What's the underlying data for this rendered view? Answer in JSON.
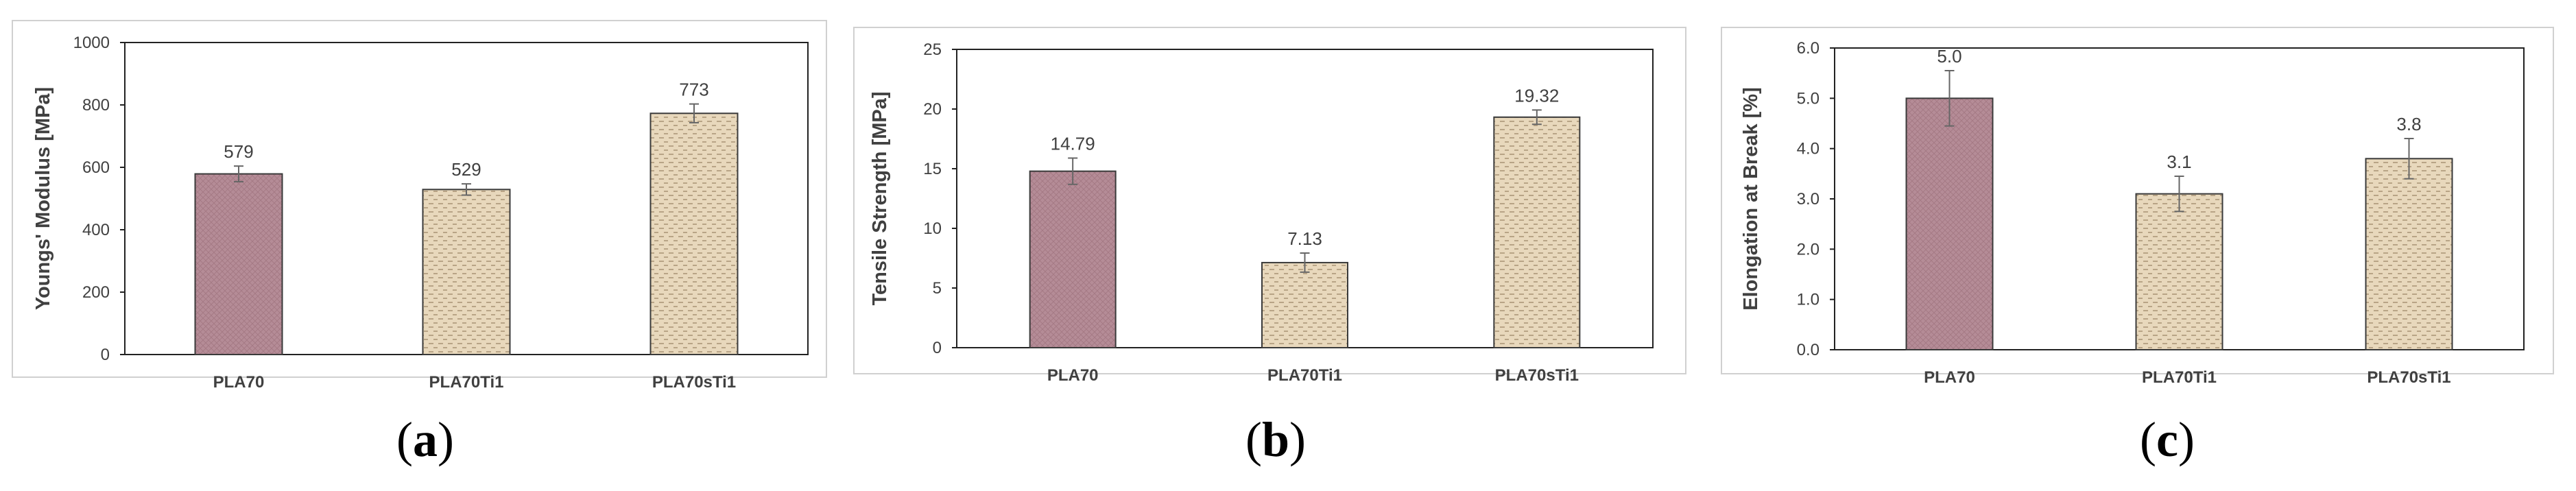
{
  "colors": {
    "pla70_fill": "#b58c97",
    "ti_fill": "#e8d8bc",
    "bar_stroke": "#3a3a3a",
    "frame": "#d0d0d0",
    "error_bar": "#666666",
    "text": "#404040"
  },
  "captions": [
    "a",
    "b",
    "c"
  ],
  "chart_data": [
    {
      "type": "bar",
      "title": "",
      "xlabel": "",
      "ylabel": "Youngs' Modulus [MPa]",
      "categories": [
        "PLA70",
        "PLA70Ti1",
        "PLA70sTi1"
      ],
      "values": [
        579,
        529,
        773
      ],
      "data_labels": [
        "579",
        "529",
        "773"
      ],
      "errors": [
        25,
        18,
        30
      ],
      "ylim": [
        0,
        1000
      ],
      "yticks": [
        "0",
        "200",
        "400",
        "600",
        "800",
        "1000"
      ],
      "grid": false
    },
    {
      "type": "bar",
      "title": "",
      "xlabel": "",
      "ylabel": "Tensile Strength [MPa]",
      "categories": [
        "PLA70",
        "PLA70Ti1",
        "PLA70sTi1"
      ],
      "values": [
        14.79,
        7.13,
        19.32
      ],
      "data_labels": [
        "14.79",
        "7.13",
        "19.32"
      ],
      "errors": [
        1.1,
        0.8,
        0.6
      ],
      "ylim": [
        0,
        25
      ],
      "yticks": [
        "0",
        "5",
        "10",
        "15",
        "20",
        "25"
      ],
      "grid": false
    },
    {
      "type": "bar",
      "title": "",
      "xlabel": "",
      "ylabel": "Elongation at Break [%]",
      "categories": [
        "PLA70",
        "PLA70Ti1",
        "PLA70sTi1"
      ],
      "values": [
        5.0,
        3.1,
        3.8
      ],
      "data_labels": [
        "5.0",
        "3.1",
        "3.8"
      ],
      "errors": [
        0.55,
        0.35,
        0.4
      ],
      "ylim": [
        0,
        6
      ],
      "yticks": [
        "0.0",
        "1.0",
        "2.0",
        "3.0",
        "4.0",
        "5.0",
        "6.0"
      ],
      "grid": false
    }
  ]
}
